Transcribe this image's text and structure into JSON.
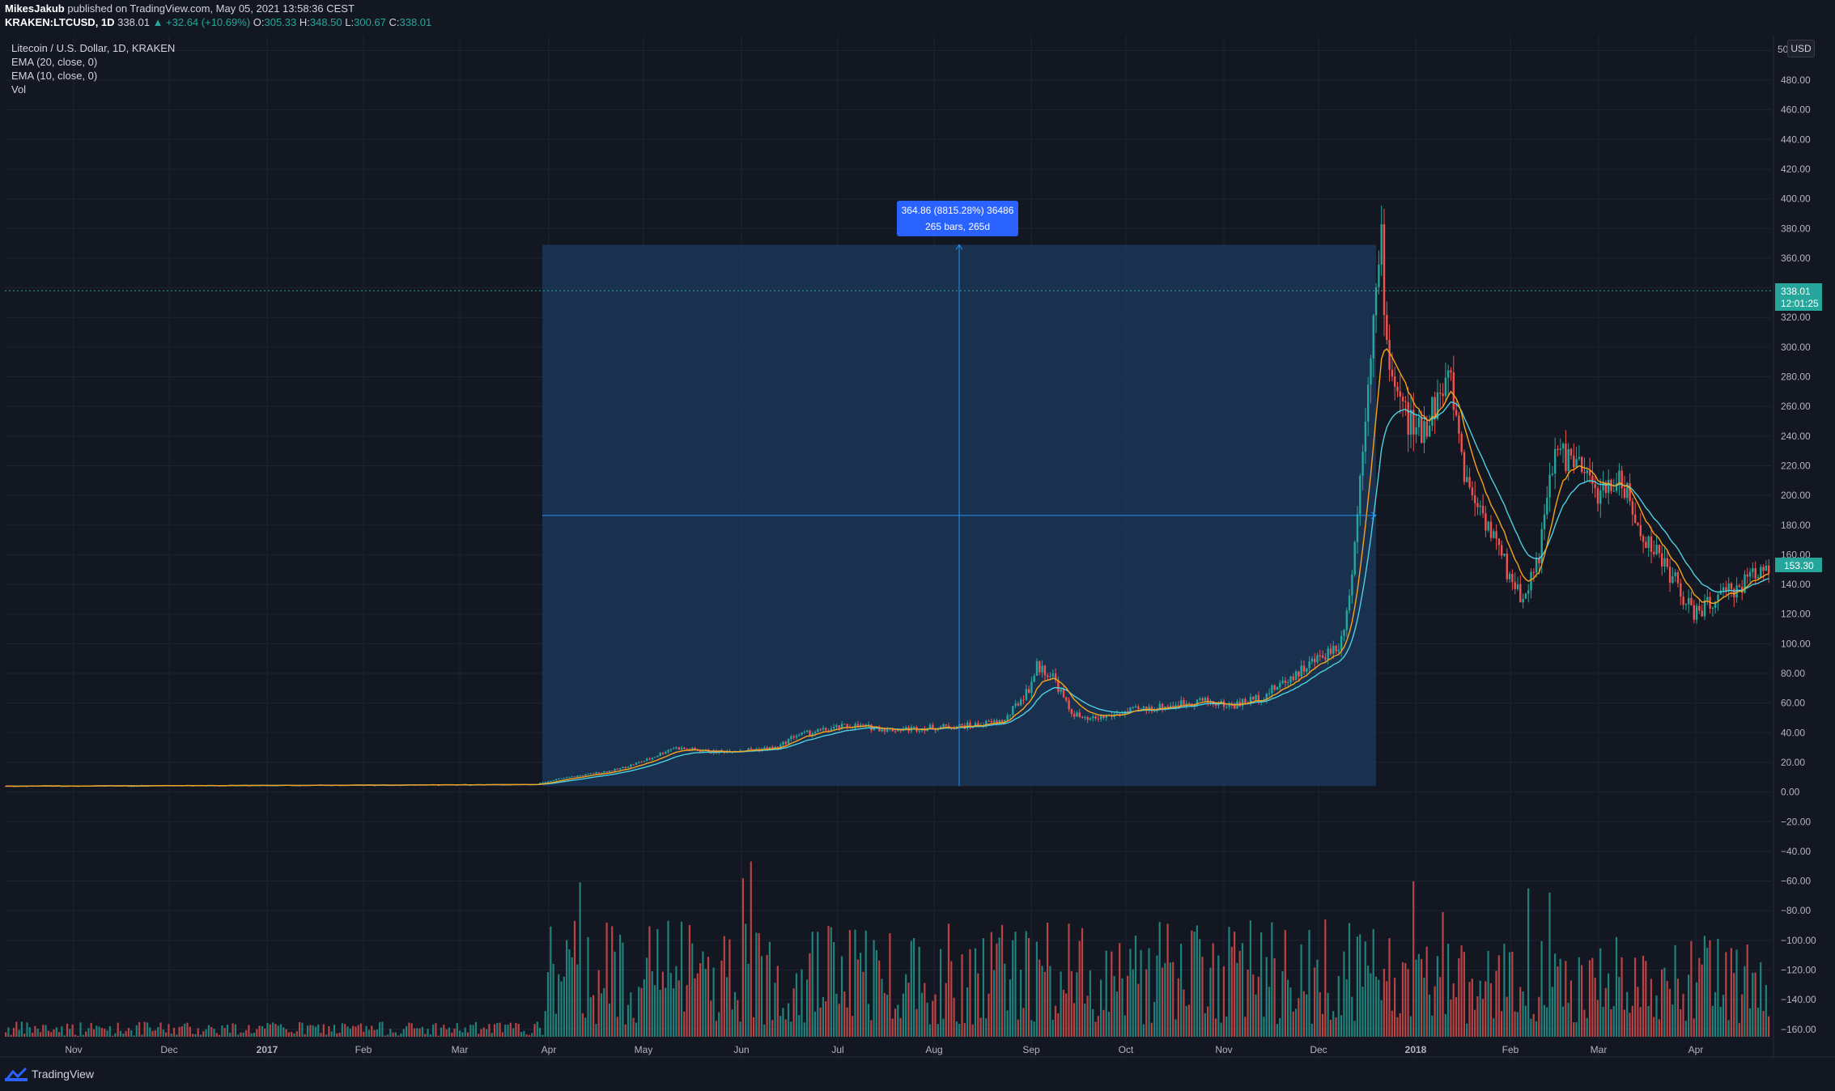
{
  "header": {
    "published_by": "MikesJakub",
    "published_text": "published on TradingView.com, May 05, 2021 13:58:36 CEST",
    "symbol": "KRAKEN:LTCUSD, 1D",
    "last": "338.01",
    "change": "▲ +32.64 (+10.69%)",
    "o_label": "O:",
    "o_value": "305.33",
    "h_label": "H:",
    "h_value": "348.50",
    "l_label": "L:",
    "l_value": "300.67",
    "c_label": "C:",
    "c_value": "338.01"
  },
  "legend": {
    "title": "Litecoin / U.S. Dollar, 1D, KRAKEN",
    "ema20": "EMA (20, close, 0)",
    "ema10": "EMA (10, close, 0)",
    "vol": "Vol"
  },
  "measure": {
    "line1": "364.86 (8815.28%) 36486",
    "line2": "265 bars, 265d"
  },
  "price_axis": {
    "currency": "USD",
    "labels": [
      "480.00",
      "460.00",
      "440.00",
      "420.00",
      "400.00",
      "380.00",
      "360.00",
      "340.00",
      "320.00",
      "300.00",
      "280.00",
      "260.00",
      "240.00",
      "220.00",
      "200.00",
      "180.00",
      "160.00",
      "140.00",
      "120.00",
      "100.00",
      "80.00",
      "60.00",
      "40.00",
      "20.00",
      "0.00",
      "−20.00",
      "−40.00",
      "−60.00",
      "−80.00",
      "−100.00",
      "−120.00",
      "−140.00",
      "−160.00"
    ],
    "top_clipped": "50",
    "last_price": "338.01",
    "countdown": "12:01:25",
    "current_price": "153.30"
  },
  "footer": {
    "brand": "TradingView"
  },
  "colors": {
    "background": "#131722",
    "up": "#26a69a",
    "down": "#ef5350",
    "ema20": "#4dd0e1",
    "ema10": "#f7a21b",
    "measure_fill": "#1e3a5f",
    "measure_line": "#2196f3",
    "label_bg": "#2962ff"
  },
  "chart_data": {
    "type": "candlestick",
    "symbol": "KRAKEN:LTCUSD",
    "interval": "1D",
    "x_tick_labels": [
      "Nov",
      "Dec",
      "2017",
      "Feb",
      "Mar",
      "Apr",
      "May",
      "Jun",
      "Jul",
      "Aug",
      "Sep",
      "Oct",
      "Nov",
      "Dec",
      "2018",
      "Feb",
      "Mar",
      "Apr"
    ],
    "y_range": [
      -160,
      500
    ],
    "y_step": 20,
    "series": [
      {
        "name": "EMA (20, close, 0)",
        "values_monthly": [
          4,
          4,
          4,
          4,
          4,
          4,
          8,
          28,
          40,
          45,
          60,
          55,
          60,
          110,
          300,
          170,
          210,
          140
        ]
      },
      {
        "name": "EMA (10, close, 0)",
        "values_monthly": [
          4,
          4,
          4,
          4,
          4,
          4,
          10,
          30,
          42,
          46,
          65,
          52,
          62,
          130,
          285,
          150,
          215,
          128
        ]
      }
    ],
    "approx_monthly_close": [
      {
        "x": "Nov",
        "y": 4
      },
      {
        "x": "Dec",
        "y": 4
      },
      {
        "x": "2017",
        "y": 4
      },
      {
        "x": "Feb",
        "y": 4
      },
      {
        "x": "Mar",
        "y": 4
      },
      {
        "x": "Apr",
        "y": 8
      },
      {
        "x": "May",
        "y": 25
      },
      {
        "x": "Jun",
        "y": 30
      },
      {
        "x": "Jul",
        "y": 42
      },
      {
        "x": "Aug",
        "y": 45
      },
      {
        "x": "Sep",
        "y": 80
      },
      {
        "x": "Oct",
        "y": 55
      },
      {
        "x": "Nov",
        "y": 60
      },
      {
        "x": "Dec",
        "y": 100
      },
      {
        "x": "2018",
        "y": 240
      },
      {
        "x": "Feb",
        "y": 150
      },
      {
        "x": "Mar",
        "y": 210
      },
      {
        "x": "Apr",
        "y": 120
      }
    ],
    "annotations": [
      {
        "type": "price_range_measure",
        "text": "364.86 (8815.28%) 36486",
        "bars": "265 bars, 265d",
        "from_date": "Apr 2017",
        "to_date": "Dec 2017",
        "from_price": 4,
        "to_price": 369
      }
    ],
    "last_price": 338.01,
    "current_price": 153.3,
    "grid": true
  }
}
